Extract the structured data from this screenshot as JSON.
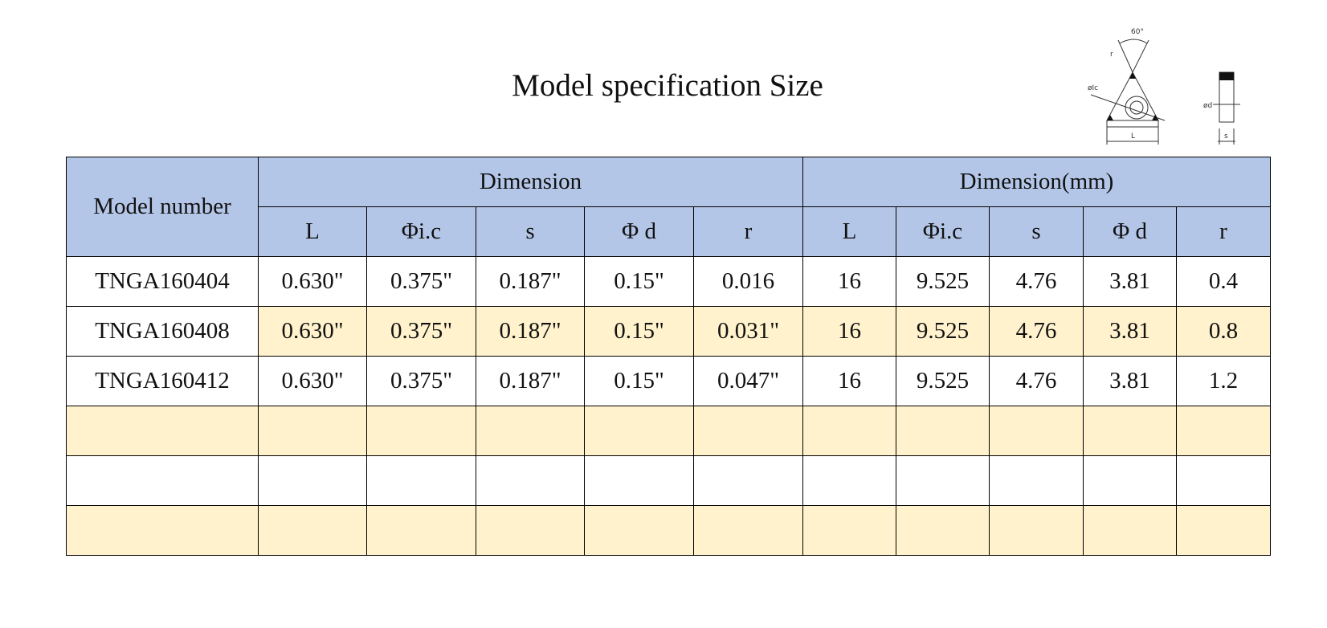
{
  "header": {
    "title": "Model specification Size"
  },
  "diagram": {
    "labels": [
      "60°",
      "r",
      "øIc",
      "L",
      "ød",
      "s"
    ]
  },
  "table": {
    "header_row1": [
      "Model number",
      "Dimension",
      "Dimension(mm)"
    ],
    "header_row2": [
      "L",
      "Φi.c",
      "s",
      "Φ d",
      "r",
      "L",
      "Φi.c",
      "s",
      "Φ d",
      "r"
    ],
    "rows": [
      [
        "TNGA160404",
        "0.630\"",
        "0.375\"",
        "0.187\"",
        "0.15\"",
        "0.016",
        "16",
        "9.525",
        "4.76",
        "3.81",
        "0.4"
      ],
      [
        "TNGA160408",
        "0.630\"",
        "0.375\"",
        "0.187\"",
        "0.15\"",
        "0.031\"",
        "16",
        "9.525",
        "4.76",
        "3.81",
        "0.8"
      ],
      [
        "TNGA160412",
        "0.630\"",
        "0.375\"",
        "0.187\"",
        "0.15\"",
        "0.047\"",
        "16",
        "9.525",
        "4.76",
        "3.81",
        "1.2"
      ]
    ]
  }
}
